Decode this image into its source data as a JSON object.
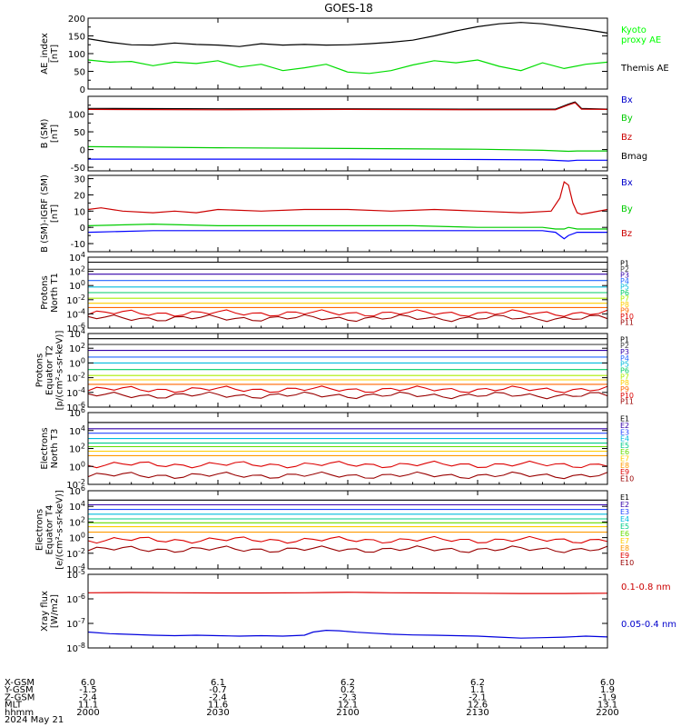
{
  "title": "GOES-18",
  "panels": [
    {
      "id": "ae",
      "ylabel": [
        "AE_index",
        "[nT]"
      ],
      "scale": "linear",
      "ylim": [
        0,
        200
      ],
      "yticks": [
        {
          "v": 0,
          "t": "0"
        },
        {
          "v": 50,
          "t": "50"
        },
        {
          "v": 100,
          "t": "100"
        },
        {
          "v": 150,
          "t": "150"
        },
        {
          "v": 200,
          "t": "200"
        }
      ],
      "legend": [
        {
          "text": "Kyoto",
          "color": "#00ff00"
        },
        {
          "text": "proxy AE",
          "color": "#00ff00"
        },
        {
          "text": "Themis AE",
          "color": "#000000"
        }
      ],
      "series": [
        {
          "name": "Kyoto proxy AE",
          "color": "#00dd00",
          "x": [
            0,
            5,
            10,
            15,
            20,
            25,
            30,
            35,
            40,
            45,
            50,
            55,
            60,
            65,
            70,
            75,
            80,
            85,
            90,
            95,
            100,
            105,
            110,
            115,
            120
          ],
          "y": [
            82,
            76,
            78,
            66,
            76,
            72,
            80,
            62,
            70,
            52,
            60,
            70,
            48,
            44,
            52,
            68,
            80,
            74,
            82,
            64,
            52,
            74,
            58,
            70,
            76
          ]
        },
        {
          "name": "Themis AE",
          "color": "#000000",
          "x": [
            0,
            5,
            10,
            15,
            20,
            25,
            30,
            35,
            40,
            45,
            50,
            55,
            60,
            65,
            70,
            75,
            80,
            85,
            90,
            95,
            100,
            105,
            110,
            115,
            120
          ],
          "y": [
            142,
            132,
            125,
            124,
            130,
            126,
            124,
            120,
            128,
            124,
            126,
            124,
            125,
            128,
            132,
            138,
            150,
            164,
            176,
            184,
            188,
            184,
            176,
            168,
            158
          ]
        }
      ]
    },
    {
      "id": "bsm",
      "ylabel": [
        "B (SM)",
        "[nT]"
      ],
      "scale": "linear",
      "ylim": [
        -60,
        150
      ],
      "yticks": [
        {
          "v": -50,
          "t": "-50"
        },
        {
          "v": 0,
          "t": "0"
        },
        {
          "v": 50,
          "t": "50"
        },
        {
          "v": 100,
          "t": "100"
        }
      ],
      "legend": [
        {
          "text": "Bx",
          "color": "#0000cc"
        },
        {
          "text": "By",
          "color": "#00cc00"
        },
        {
          "text": "Bz",
          "color": "#cc0000"
        },
        {
          "text": "Bmag",
          "color": "#000000"
        }
      ],
      "series": [
        {
          "name": "Bx",
          "color": "#0000ff",
          "x": [
            0,
            30,
            60,
            90,
            105,
            111,
            113,
            120
          ],
          "y": [
            -27,
            -27,
            -27,
            -28,
            -29,
            -32,
            -30,
            -30
          ]
        },
        {
          "name": "By",
          "color": "#00cc00",
          "x": [
            0,
            30,
            60,
            90,
            105,
            111,
            113,
            120
          ],
          "y": [
            8,
            5,
            3,
            1,
            -2,
            -5,
            -4,
            -4
          ]
        },
        {
          "name": "Bmag",
          "color": "#000000",
          "x": [
            0,
            30,
            60,
            90,
            108,
            111,
            112.5,
            114,
            120
          ],
          "y": [
            116,
            115,
            115,
            114,
            114,
            128,
            134,
            116,
            114
          ]
        },
        {
          "name": "Bz",
          "color": "#cc0000",
          "x": [
            0,
            30,
            60,
            90,
            108,
            111,
            112.5,
            114,
            120
          ],
          "y": [
            113,
            112,
            113,
            112,
            112,
            126,
            132,
            114,
            113
          ]
        }
      ]
    },
    {
      "id": "bigrf",
      "ylabel": [
        "B (SM)-IGRF (SM)",
        "[nT]"
      ],
      "scale": "linear",
      "ylim": [
        -15,
        32
      ],
      "yticks": [
        {
          "v": -10,
          "t": "-10"
        },
        {
          "v": 0,
          "t": "0"
        },
        {
          "v": 10,
          "t": "10"
        },
        {
          "v": 20,
          "t": "20"
        },
        {
          "v": 30,
          "t": "30"
        }
      ],
      "legend": [
        {
          "text": "Bx",
          "color": "#0000cc"
        },
        {
          "text": "By",
          "color": "#00cc00"
        },
        {
          "text": "Bz",
          "color": "#cc0000"
        }
      ],
      "series": [
        {
          "name": "Bx",
          "color": "#0000ff",
          "x": [
            0,
            15,
            30,
            45,
            60,
            75,
            90,
            105,
            108,
            110,
            111,
            113,
            120
          ],
          "y": [
            -3,
            -2,
            -2,
            -2,
            -2,
            -2,
            -2,
            -2,
            -3,
            -7,
            -5,
            -3,
            -3
          ]
        },
        {
          "name": "By",
          "color": "#00cc00",
          "x": [
            0,
            15,
            30,
            45,
            60,
            75,
            90,
            105,
            108,
            110,
            111,
            113,
            120
          ],
          "y": [
            1,
            2,
            1,
            1,
            1,
            1,
            0,
            0,
            -1,
            -1,
            0,
            -1,
            -1
          ]
        },
        {
          "name": "Bz",
          "color": "#cc0000",
          "x": [
            0,
            3,
            8,
            15,
            20,
            25,
            30,
            40,
            50,
            60,
            70,
            80,
            90,
            100,
            107,
            109,
            110,
            111,
            112,
            113,
            114,
            116,
            120
          ],
          "y": [
            11,
            12,
            10,
            9,
            10,
            9,
            11,
            10,
            11,
            11,
            10,
            11,
            10,
            9,
            10,
            18,
            28,
            26,
            15,
            9,
            8,
            9,
            11
          ]
        }
      ]
    },
    {
      "id": "protons-t1",
      "ylabel": [
        "Protons",
        "North T1"
      ],
      "scale": "log",
      "ylim": [
        -6,
        4
      ],
      "yticks": [
        {
          "v": 4,
          "t": "10^4"
        },
        {
          "v": 2,
          "t": "10^2"
        },
        {
          "v": 0,
          "t": "10^0"
        },
        {
          "v": -2,
          "t": "10^-2"
        },
        {
          "v": -4,
          "t": "10^-4"
        },
        {
          "v": -6,
          "t": "10^-6"
        }
      ],
      "channels": [
        {
          "label": "P1",
          "color": "#000000",
          "logy": 3.3
        },
        {
          "label": "P2",
          "color": "#444444",
          "logy": 2.3
        },
        {
          "label": "P3",
          "color": "#3300aa",
          "logy": 1.6
        },
        {
          "label": "P4",
          "color": "#2266ff",
          "logy": 0.7
        },
        {
          "label": "P5",
          "color": "#00bbdd",
          "logy": -0.2
        },
        {
          "label": "P6",
          "color": "#00cc66",
          "logy": -1.0
        },
        {
          "label": "P7",
          "color": "#aaee00",
          "logy": -1.8
        },
        {
          "label": "P8",
          "color": "#ffcc00",
          "logy": -2.5
        },
        {
          "label": "P9",
          "color": "#ff6600",
          "logy": -3.1
        },
        {
          "label": "P10",
          "color": "#dd0000",
          "logy": -3.9
        },
        {
          "label": "P11",
          "color": "#990000",
          "logy": -4.6
        }
      ]
    },
    {
      "id": "protons-t2",
      "ylabel": [
        "Protons",
        "Equator T2",
        "[p/(cm²-s-sr-keV)]"
      ],
      "scale": "log",
      "ylim": [
        -6,
        4
      ],
      "yticks": [
        {
          "v": 4,
          "t": "10^4"
        },
        {
          "v": 2,
          "t": "10^2"
        },
        {
          "v": 0,
          "t": "10^0"
        },
        {
          "v": -2,
          "t": "10^-2"
        },
        {
          "v": -4,
          "t": "10^-4"
        },
        {
          "v": -6,
          "t": "10^-6"
        }
      ],
      "channels": [
        {
          "label": "P1",
          "color": "#000000",
          "logy": 3.3
        },
        {
          "label": "P2",
          "color": "#444444",
          "logy": 2.5
        },
        {
          "label": "P3",
          "color": "#3300aa",
          "logy": 1.7
        },
        {
          "label": "P4",
          "color": "#2266ff",
          "logy": 0.8
        },
        {
          "label": "P5",
          "color": "#00bbdd",
          "logy": 0.0
        },
        {
          "label": "P6",
          "color": "#00cc66",
          "logy": -0.9
        },
        {
          "label": "P7",
          "color": "#aaee00",
          "logy": -1.7
        },
        {
          "label": "P8",
          "color": "#ffcc00",
          "logy": -2.3
        },
        {
          "label": "P9",
          "color": "#ff6600",
          "logy": -2.9
        },
        {
          "label": "P10",
          "color": "#dd0000",
          "logy": -3.6
        },
        {
          "label": "P11",
          "color": "#990000",
          "logy": -4.4
        }
      ]
    },
    {
      "id": "electrons-t3",
      "ylabel": [
        "Electrons",
        "North T3"
      ],
      "scale": "log",
      "ylim": [
        -2,
        6
      ],
      "yticks": [
        {
          "v": 6,
          "t": "10^6"
        },
        {
          "v": 4,
          "t": "10^4"
        },
        {
          "v": 2,
          "t": "10^2"
        },
        {
          "v": 0,
          "t": "10^0"
        },
        {
          "v": -2,
          "t": "10^-2"
        }
      ],
      "channels": [
        {
          "label": "E1",
          "color": "#000000",
          "logy": 4.9
        },
        {
          "label": "E2",
          "color": "#3300aa",
          "logy": 4.2
        },
        {
          "label": "E3",
          "color": "#2244ff",
          "logy": 3.7
        },
        {
          "label": "E4",
          "color": "#00bbdd",
          "logy": 3.1
        },
        {
          "label": "E5",
          "color": "#00cc88",
          "logy": 2.6
        },
        {
          "label": "E6",
          "color": "#66dd00",
          "logy": 2.2
        },
        {
          "label": "E7",
          "color": "#ffcc00",
          "logy": 1.7
        },
        {
          "label": "E8",
          "color": "#ff9900",
          "logy": 1.2
        },
        {
          "label": "E9",
          "color": "#dd0000",
          "logy": 0.2
        },
        {
          "label": "E10",
          "color": "#990000",
          "logy": -1.0
        }
      ]
    },
    {
      "id": "electrons-t4",
      "ylabel": [
        "Electrons",
        "Equator T4",
        "[e/(cm²-s-sr-keV)]"
      ],
      "scale": "log",
      "ylim": [
        -4,
        6
      ],
      "yticks": [
        {
          "v": 6,
          "t": "10^6"
        },
        {
          "v": 4,
          "t": "10^4"
        },
        {
          "v": 2,
          "t": "10^2"
        },
        {
          "v": 0,
          "t": "10^0"
        },
        {
          "v": -2,
          "t": "10^-2"
        },
        {
          "v": -4,
          "t": "10^-4"
        }
      ],
      "channels": [
        {
          "label": "E1",
          "color": "#000000",
          "logy": 4.8
        },
        {
          "label": "E2",
          "color": "#3300aa",
          "logy": 4.2
        },
        {
          "label": "E3",
          "color": "#2244ff",
          "logy": 3.6
        },
        {
          "label": "E4",
          "color": "#00bbdd",
          "logy": 3.0
        },
        {
          "label": "E5",
          "color": "#00cc88",
          "logy": 2.4
        },
        {
          "label": "E6",
          "color": "#66dd00",
          "logy": 1.9
        },
        {
          "label": "E7",
          "color": "#ffcc00",
          "logy": 1.4
        },
        {
          "label": "E8",
          "color": "#ff9900",
          "logy": 0.7
        },
        {
          "label": "E9",
          "color": "#dd0000",
          "logy": -0.3
        },
        {
          "label": "E10",
          "color": "#990000",
          "logy": -1.5
        }
      ]
    },
    {
      "id": "xray",
      "ylabel": [
        "Xray flux",
        "[W/m2]"
      ],
      "scale": "log",
      "ylim": [
        -8,
        -5
      ],
      "yticks": [
        {
          "v": -5,
          "t": "10^-5"
        },
        {
          "v": -6,
          "t": "10^-6"
        },
        {
          "v": -7,
          "t": "10^-7"
        },
        {
          "v": -8,
          "t": "10^-8"
        }
      ],
      "legend": [
        {
          "text": "0.1-0.8 nm",
          "color": "#cc0000"
        },
        {
          "text": "0.05-0.4 nm",
          "color": "#0000cc"
        }
      ],
      "series": [
        {
          "name": "0.1-0.8 nm",
          "color": "#dd0000",
          "x": [
            0,
            10,
            20,
            30,
            40,
            50,
            55,
            60,
            65,
            70,
            80,
            90,
            100,
            110,
            120
          ],
          "y": [
            -5.75,
            -5.74,
            -5.75,
            -5.76,
            -5.76,
            -5.75,
            -5.74,
            -5.73,
            -5.74,
            -5.75,
            -5.76,
            -5.77,
            -5.78,
            -5.78,
            -5.77
          ]
        },
        {
          "name": "0.05-0.4 nm",
          "color": "#0000dd",
          "x": [
            0,
            5,
            10,
            15,
            20,
            25,
            30,
            35,
            40,
            45,
            50,
            52,
            55,
            58,
            62,
            66,
            70,
            75,
            80,
            85,
            90,
            95,
            100,
            105,
            110,
            115,
            120
          ],
          "y": [
            -7.35,
            -7.42,
            -7.45,
            -7.48,
            -7.5,
            -7.48,
            -7.5,
            -7.52,
            -7.5,
            -7.52,
            -7.48,
            -7.35,
            -7.28,
            -7.3,
            -7.36,
            -7.4,
            -7.44,
            -7.47,
            -7.48,
            -7.5,
            -7.52,
            -7.56,
            -7.6,
            -7.58,
            -7.56,
            -7.52,
            -7.55
          ]
        }
      ]
    }
  ],
  "xaxis": {
    "range": [
      0,
      120
    ],
    "ticks": [
      0,
      30,
      60,
      90,
      120
    ],
    "rows": [
      {
        "label": "X-GSM",
        "values": [
          "6.0",
          "6.1",
          "6.2",
          "6.2",
          "6.0"
        ]
      },
      {
        "label": "Y-GSM",
        "values": [
          "-1.5",
          "-0.7",
          "0.2",
          "1.1",
          "1.9"
        ]
      },
      {
        "label": "Z-GSM",
        "values": [
          "-2.4",
          "-2.4",
          "-2.3",
          "-2.1",
          "-1.9"
        ]
      },
      {
        "label": "MLT",
        "values": [
          "11.1",
          "11.6",
          "12.1",
          "12.6",
          "13.1"
        ]
      },
      {
        "label": "hhmm",
        "values": [
          "2000",
          "2030",
          "2100",
          "2130",
          "2200"
        ]
      }
    ],
    "date": "2024 May 21"
  }
}
